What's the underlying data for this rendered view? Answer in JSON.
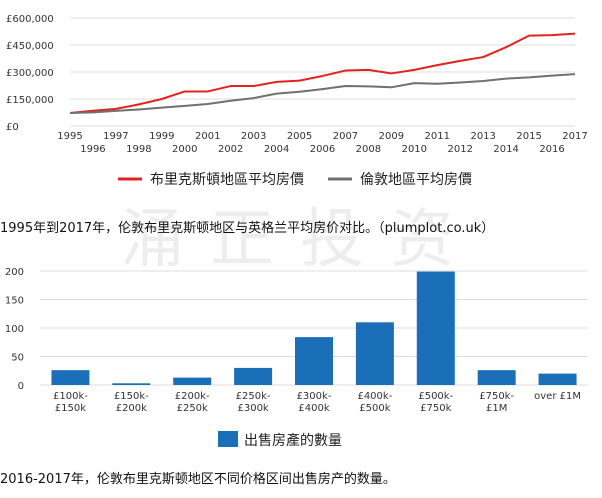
{
  "watermark": "涌正投资",
  "captions": {
    "line_chart": "1995年到2017年，伦敦布里克斯顿地区与英格兰平均房价对比。（plumplot.co.uk）",
    "bar_chart": "2016-2017年，伦敦布里克斯顿地区不同价格区间出售房产的数量。"
  },
  "colors": {
    "brixton": "#e0231e",
    "london": "#707070",
    "bars": "#1a6fb8",
    "grid": "#dddddd",
    "axis_text": "#333333"
  },
  "chart_data": [
    {
      "type": "line",
      "title": "",
      "xlabel": "",
      "ylabel": "",
      "x": [
        1995,
        1996,
        1997,
        1998,
        1999,
        2000,
        2001,
        2002,
        2003,
        2004,
        2005,
        2006,
        2007,
        2008,
        2009,
        2010,
        2011,
        2012,
        2013,
        2014,
        2015,
        2016,
        2017
      ],
      "x_tick_labels_top": [
        "1995",
        "1997",
        "1999",
        "2001",
        "2003",
        "2005",
        "2007",
        "2009",
        "2011",
        "2013",
        "2015",
        "2017"
      ],
      "x_tick_labels_bottom": [
        "1996",
        "1998",
        "2000",
        "2002",
        "2004",
        "2006",
        "2008",
        "2010",
        "2012",
        "2014",
        "2016"
      ],
      "y_tick_labels": [
        "£600,000",
        "£450,000",
        "£300,000",
        "£150,000",
        "£0"
      ],
      "y_ticks": [
        600000,
        450000,
        300000,
        150000,
        0
      ],
      "ylim": [
        0,
        600000
      ],
      "grid": true,
      "legend_position": "bottom",
      "series": [
        {
          "name": "布里克斯頓地區平均房價",
          "values": [
            72000,
            85000,
            95000,
            120000,
            150000,
            192000,
            192000,
            222000,
            222000,
            245000,
            252000,
            278000,
            308000,
            312000,
            292000,
            312000,
            338000,
            362000,
            383000,
            438000,
            502000,
            505000,
            513000
          ]
        },
        {
          "name": "倫敦地區平均房價",
          "values": [
            72000,
            76000,
            84000,
            92000,
            102000,
            112000,
            122000,
            140000,
            155000,
            180000,
            190000,
            205000,
            222000,
            220000,
            215000,
            238000,
            235000,
            242000,
            250000,
            263000,
            270000,
            280000,
            288000
          ]
        }
      ]
    },
    {
      "type": "bar",
      "title": "",
      "xlabel": "",
      "ylabel": "",
      "categories": [
        [
          "£100k-",
          "£150k"
        ],
        [
          "£150k-",
          "£200k"
        ],
        [
          "£200k-",
          "£250k"
        ],
        [
          "£250k-",
          "£300k"
        ],
        [
          "£300k-",
          "£400k"
        ],
        [
          "£400k-",
          "£500k"
        ],
        [
          "£500k-",
          "£750k"
        ],
        [
          "£750k-",
          "£1M"
        ],
        [
          "over £1M"
        ]
      ],
      "values": [
        26,
        3,
        13,
        30,
        84,
        110,
        199,
        26,
        20
      ],
      "y_tick_labels": [
        "200",
        "150",
        "100",
        "50",
        "0"
      ],
      "y_ticks": [
        200,
        150,
        100,
        50,
        0
      ],
      "ylim": [
        0,
        200
      ],
      "grid": true,
      "legend_position": "bottom",
      "series": [
        {
          "name": "出售房產的數量",
          "values": [
            26,
            3,
            13,
            30,
            84,
            110,
            199,
            26,
            20
          ]
        }
      ]
    }
  ]
}
